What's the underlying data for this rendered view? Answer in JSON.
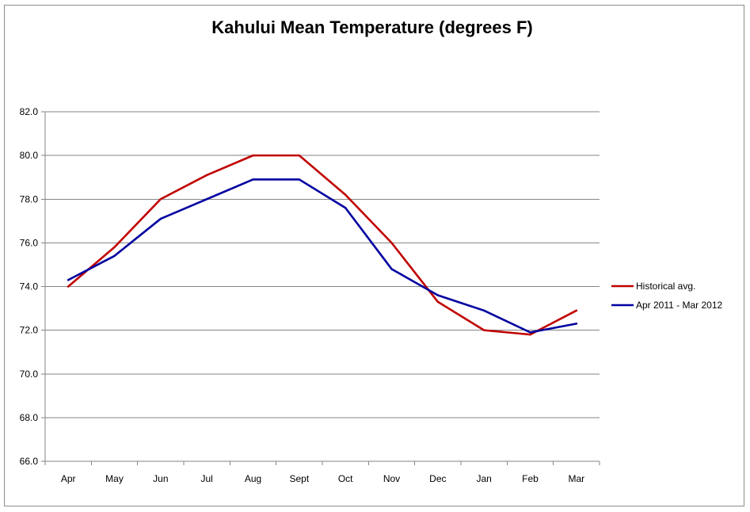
{
  "chart_data": {
    "type": "line",
    "title": "Kahului Mean Temperature (degrees F)",
    "xlabel": "",
    "ylabel": "",
    "categories": [
      "Apr",
      "May",
      "Jun",
      "Jul",
      "Aug",
      "Sept",
      "Oct",
      "Nov",
      "Dec",
      "Jan",
      "Feb",
      "Mar"
    ],
    "ylim": [
      66.0,
      82.0
    ],
    "ytick_step": 2.0,
    "yticks": [
      "66.0",
      "68.0",
      "70.0",
      "72.0",
      "74.0",
      "76.0",
      "78.0",
      "80.0",
      "82.0"
    ],
    "grid": true,
    "legend_position": "right",
    "series": [
      {
        "name": "Historical avg.",
        "color": "#C00000",
        "values": [
          74.0,
          75.8,
          78.0,
          79.1,
          80.0,
          80.0,
          78.2,
          76.0,
          73.3,
          72.0,
          71.8,
          72.9
        ]
      },
      {
        "name": "Apr 2011 - Mar 2012",
        "color": "#0000A0",
        "values": [
          74.3,
          75.4,
          77.1,
          78.0,
          78.9,
          78.9,
          77.6,
          74.8,
          73.6,
          72.9,
          71.9,
          72.3
        ]
      }
    ]
  }
}
